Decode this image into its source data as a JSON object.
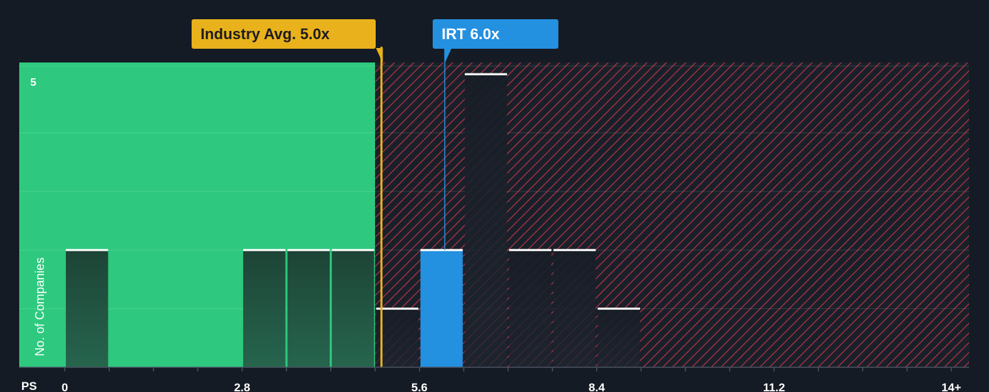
{
  "chart_data": {
    "type": "bar",
    "x_axis_name": "PS",
    "ylabel": "No. of Companies",
    "xlim": [
      -0.72,
      14.28
    ],
    "ylim": [
      0,
      5.2
    ],
    "x_ticks": [
      {
        "value": 0,
        "label": "0"
      },
      {
        "value": 2.8,
        "label": "2.8"
      },
      {
        "value": 5.6,
        "label": "5.6"
      },
      {
        "value": 8.4,
        "label": "8.4"
      },
      {
        "value": 11.2,
        "label": "11.2"
      },
      {
        "value": 14,
        "label": "14+"
      }
    ],
    "y_ticks": [
      {
        "value": 5,
        "label": "5"
      }
    ],
    "bins": [
      {
        "start": 0.0,
        "end": 0.7,
        "count": 2
      },
      {
        "start": 2.8,
        "end": 3.5,
        "count": 2
      },
      {
        "start": 3.5,
        "end": 4.2,
        "count": 2
      },
      {
        "start": 4.2,
        "end": 4.9,
        "count": 2
      },
      {
        "start": 4.9,
        "end": 5.6,
        "count": 1
      },
      {
        "start": 5.6,
        "end": 6.3,
        "count": 2,
        "highlight": true
      },
      {
        "start": 6.3,
        "end": 7.0,
        "count": 5
      },
      {
        "start": 7.0,
        "end": 7.7,
        "count": 2
      },
      {
        "start": 7.7,
        "end": 8.4,
        "count": 2
      },
      {
        "start": 8.4,
        "end": 9.1,
        "count": 1
      }
    ],
    "fair_zone_end": 4.9,
    "industry_avg": {
      "value": 5.0,
      "label": "Industry Avg. 5.0x"
    },
    "company": {
      "value": 6.0,
      "label": "IRT 6.0x"
    },
    "grid": true,
    "colors": {
      "background": "#151b24",
      "fair_zone": "#2ec97e",
      "expensive_hatch": "#c8354a",
      "industry": "#e9b21c",
      "company": "#2490e0",
      "bar_dark": "#1f4a3c",
      "bar_hatched": "#1c2530",
      "cap": "#ffffff"
    }
  }
}
